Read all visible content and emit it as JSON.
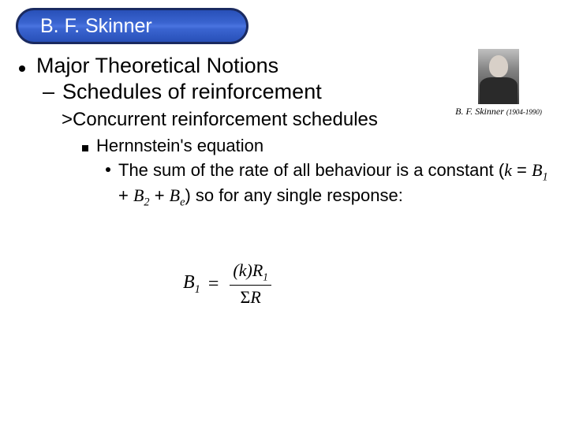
{
  "title": "B. F. Skinner",
  "portrait": {
    "caption_name": "B. F. Skinner",
    "caption_dates": "(1904-1990)"
  },
  "bullets": {
    "level1": "Major Theoretical Notions",
    "level2": "Schedules of reinforcement",
    "level3": ">Concurrent reinforcement schedules",
    "level4": "Hernnstein's equation",
    "level5_pre": "The sum of the rate of all behaviour is a constant (",
    "level5_k": "k",
    "level5_eq": " = ",
    "level5_b1": "B",
    "level5_b1s": "1",
    "level5_plus1": " + ",
    "level5_b2": "B",
    "level5_b2s": "2",
    "level5_plus2": " + ",
    "level5_be": "B",
    "level5_bes": "e",
    "level5_post": ") so for any single response:"
  },
  "equation": {
    "lhs_var": "B",
    "lhs_sub": "1",
    "equals": "=",
    "num_pre": "(k)R",
    "num_sub": "1",
    "den_sigma": "Σ",
    "den_var": "R"
  },
  "colors": {
    "pill_gradient_top": "#2850b8",
    "pill_border": "#1a2a60",
    "text": "#000000",
    "background": "#ffffff"
  }
}
